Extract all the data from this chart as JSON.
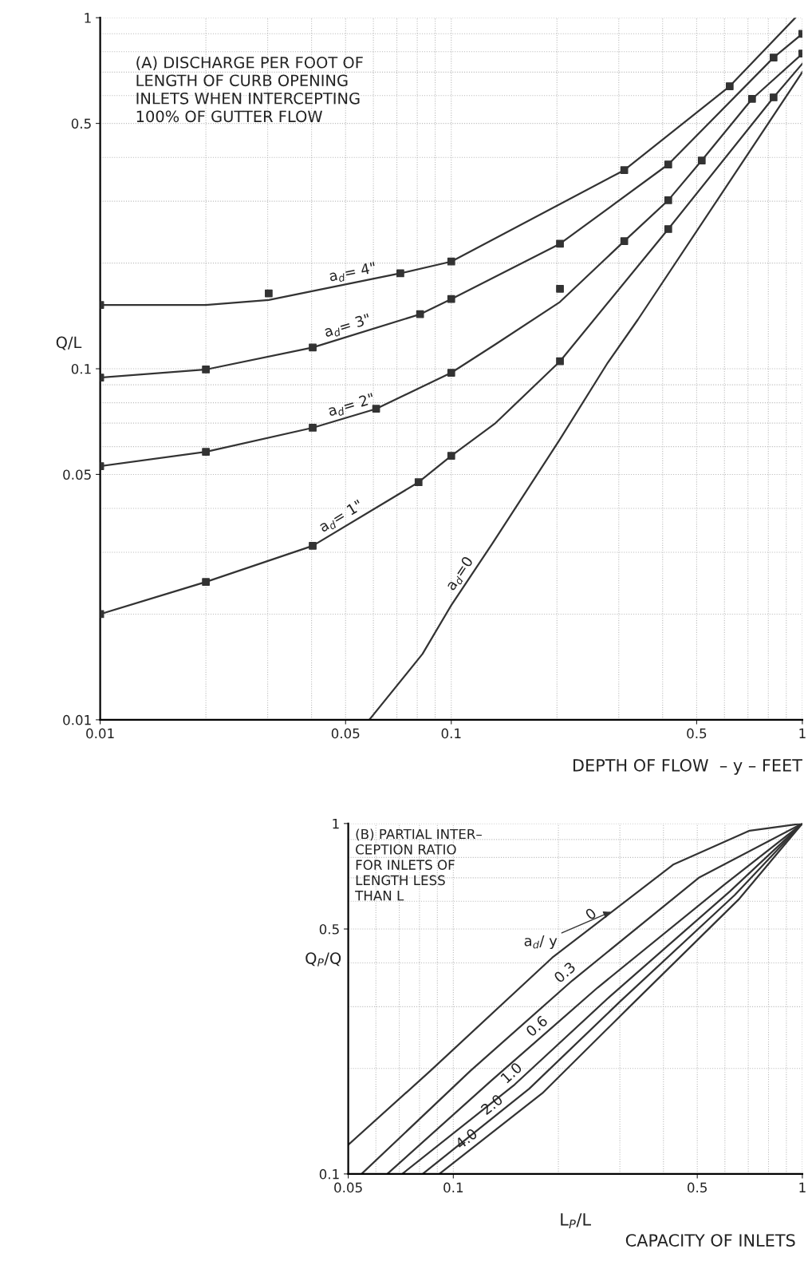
{
  "chart_data": [
    {
      "type": "line",
      "title": "(A) DISCHARGE PER FOOT OF\nLENGTH OF CURB OPENING\nINLETS WHEN INTERCEPTING\n100% OF GUTTER FLOW",
      "xlabel": "DEPTH OF FLOW  – y – FEET",
      "ylabel": "Q/L",
      "log": "xy",
      "grid": true,
      "line_style": "solid",
      "xlim": [
        0.01,
        1
      ],
      "ylim": [
        0.01,
        1
      ],
      "xticks": [
        0.01,
        0.05,
        0.1,
        0.5,
        1
      ],
      "yticks": [
        0.01,
        0.05,
        0.1,
        0.5,
        1
      ],
      "series": [
        {
          "color": "#333333",
          "x": [
            0.0584,
            0.0828,
            0.1,
            0.131,
            0.204,
            0.279,
            0.34,
            1.0
          ],
          "values": [
            0.01,
            0.0154,
            0.0212,
            0.0318,
            0.063,
            0.104,
            0.138,
            0.7
          ]
        },
        {
          "color": "#333333",
          "x": [
            0.01,
            0.02,
            0.0403,
            0.0807,
            0.1,
            0.133,
            0.204,
            0.415,
            0.828,
            1.0
          ],
          "values": [
            0.02,
            0.0247,
            0.0313,
            0.0475,
            0.0565,
            0.0697,
            0.105,
            0.25,
            0.593,
            0.74
          ]
        },
        {
          "color": "#333333",
          "x": [
            0.01,
            0.02,
            0.0403,
            0.0611,
            0.1,
            0.133,
            0.204,
            0.311,
            0.415,
            0.517,
            0.719,
            1.0
          ],
          "values": [
            0.0528,
            0.058,
            0.0679,
            0.0769,
            0.0974,
            0.117,
            0.155,
            0.231,
            0.302,
            0.392,
            0.587,
            0.79
          ]
        },
        {
          "color": "#333333",
          "x": [
            0.01,
            0.02,
            0.0403,
            0.0815,
            0.1,
            0.204,
            0.415,
            0.828,
            1.0
          ],
          "values": [
            0.0944,
            0.0995,
            0.115,
            0.143,
            0.158,
            0.227,
            0.382,
            0.77,
            0.9
          ]
        },
        {
          "color": "#333333",
          "x": [
            0.01,
            0.02,
            0.0302,
            0.0716,
            0.1,
            0.311,
            0.621,
            0.955
          ],
          "values": [
            0.152,
            0.152,
            0.157,
            0.187,
            0.202,
            0.368,
            0.638,
            1.0
          ]
        },
        {
          "type": "scatter",
          "marker": "square",
          "color": "#333333",
          "x": [
            0.01,
            0.0302,
            0.0716,
            0.1,
            0.311,
            0.621,
            0.01,
            0.02,
            0.0403,
            0.0815,
            0.1,
            0.204,
            0.415,
            0.828,
            1.0,
            0.01,
            0.02,
            0.0403,
            0.0611,
            0.1,
            0.204,
            0.311,
            0.415,
            0.517,
            0.719,
            1.0,
            0.01,
            0.02,
            0.0403,
            0.0807,
            0.1,
            0.204,
            0.415,
            0.828
          ],
          "values": [
            0.152,
            0.164,
            0.187,
            0.202,
            0.368,
            0.638,
            0.0944,
            0.0995,
            0.115,
            0.143,
            0.158,
            0.227,
            0.382,
            0.77,
            0.9,
            0.0528,
            0.058,
            0.0679,
            0.0769,
            0.0974,
            0.169,
            0.231,
            0.302,
            0.392,
            0.587,
            0.79,
            0.02,
            0.0247,
            0.0313,
            0.0475,
            0.0565,
            0.105,
            0.25,
            0.593
          ]
        }
      ],
      "annotations": [
        {
          "text": "a$_{d}$= 4\"",
          "x": 0.0531,
          "y": 0.176
        },
        {
          "text": "a$_{d}$= 3\"",
          "x": 0.0517,
          "y": 0.124
        },
        {
          "text": "a$_{d}$= 2\"",
          "x": 0.053,
          "y": 0.0737
        },
        {
          "text": "a$_{d}$= 1\"",
          "x": 0.0503,
          "y": 0.0358
        },
        {
          "text": "a$_{d}$=0",
          "x": 0.112,
          "y": 0.0251
        }
      ]
    },
    {
      "type": "line",
      "title": "(B) PARTIAL INTER–\nCEPTION RATIO\nFOR INLETS OF\nLENGTH LESS\nTHAN L",
      "xlabel": "L$_{P}$/L",
      "ylabel": "Q$_{P}$/Q",
      "legend_title": "a$_{d}$/ y",
      "log": "xy",
      "grid": true,
      "line_style": "solid",
      "xlim": [
        0.05,
        1
      ],
      "ylim": [
        0.1,
        1
      ],
      "xticks": [
        0.05,
        0.1,
        0.5,
        1
      ],
      "yticks": [
        0.1,
        0.5,
        1
      ],
      "series": [
        {
          "color": "#333333",
          "x": [
            0.05,
            0.086,
            0.192,
            0.428,
            0.706,
            1
          ],
          "values": [
            0.121,
            0.197,
            0.414,
            0.765,
            0.954,
            1
          ]
        },
        {
          "color": "#333333",
          "x": [
            0.0546,
            0.112,
            0.219,
            0.505,
            1
          ],
          "values": [
            0.1,
            0.197,
            0.356,
            0.7,
            1
          ]
        },
        {
          "color": "#333333",
          "x": [
            0.0647,
            0.128,
            0.259,
            0.596,
            1
          ],
          "values": [
            0.1,
            0.184,
            0.34,
            0.668,
            1
          ]
        },
        {
          "color": "#333333",
          "x": [
            0.0714,
            0.15,
            0.28,
            0.62,
            1
          ],
          "values": [
            0.1,
            0.18,
            0.32,
            0.64,
            1
          ]
        },
        {
          "color": "#333333",
          "x": [
            0.0817,
            0.165,
            0.3,
            0.64,
            1
          ],
          "values": [
            0.1,
            0.175,
            0.31,
            0.625,
            1
          ]
        },
        {
          "color": "#333333",
          "x": [
            0.0912,
            0.18,
            0.32,
            0.66,
            1
          ],
          "values": [
            0.1,
            0.17,
            0.3,
            0.61,
            1
          ]
        }
      ],
      "annotations": [
        {
          "text": "0",
          "x": 0.259,
          "y": 0.521
        },
        {
          "text": "0.3",
          "x": 0.219,
          "y": 0.356
        },
        {
          "text": "0.6",
          "x": 0.182,
          "y": 0.25
        },
        {
          "text": "1.0",
          "x": 0.154,
          "y": 0.184
        },
        {
          "text": "2.0",
          "x": 0.135,
          "y": 0.149
        },
        {
          "text": "4.0",
          "x": 0.114,
          "y": 0.119
        },
        "CAPACITY OF INLETS"
      ]
    }
  ]
}
